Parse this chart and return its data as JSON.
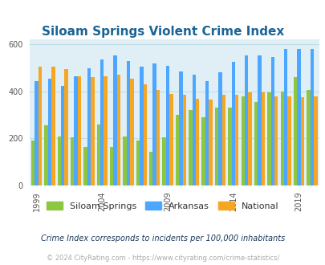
{
  "title": "Siloam Springs Violent Crime Index",
  "title_color": "#1a6496",
  "background_color": "#e0eff5",
  "outer_background": "#ffffff",
  "years": [
    1999,
    2000,
    2001,
    2002,
    2003,
    2004,
    2005,
    2006,
    2007,
    2008,
    2009,
    2010,
    2011,
    2012,
    2013,
    2014,
    2015,
    2016,
    2017,
    2018,
    2019,
    2020
  ],
  "siloam_springs": [
    190,
    255,
    210,
    205,
    165,
    260,
    165,
    210,
    190,
    145,
    205,
    300,
    320,
    290,
    330,
    330,
    380,
    355,
    395,
    400,
    460,
    405
  ],
  "arkansas": [
    445,
    455,
    425,
    465,
    500,
    535,
    555,
    530,
    505,
    520,
    510,
    485,
    470,
    445,
    480,
    525,
    555,
    555,
    545,
    580,
    580,
    580
  ],
  "national": [
    505,
    505,
    495,
    465,
    460,
    465,
    470,
    455,
    430,
    405,
    390,
    385,
    370,
    365,
    385,
    385,
    395,
    395,
    380,
    380,
    375,
    380
  ],
  "ylim": [
    0,
    620
  ],
  "yticks": [
    0,
    200,
    400,
    600
  ],
  "xlabel_ticks": [
    1999,
    2004,
    2009,
    2014,
    2019
  ],
  "color_siloam": "#8dc63f",
  "color_arkansas": "#4da6ff",
  "color_national": "#f5a623",
  "legend_labels": [
    "Siloam Springs",
    "Arkansas",
    "National"
  ],
  "footnote1": "Crime Index corresponds to incidents per 100,000 inhabitants",
  "footnote2": "© 2024 CityRating.com - https://www.cityrating.com/crime-statistics/",
  "footnote1_color": "#1a3a5c",
  "footnote2_color": "#aaaaaa",
  "grid_color": "#b8d8e0"
}
